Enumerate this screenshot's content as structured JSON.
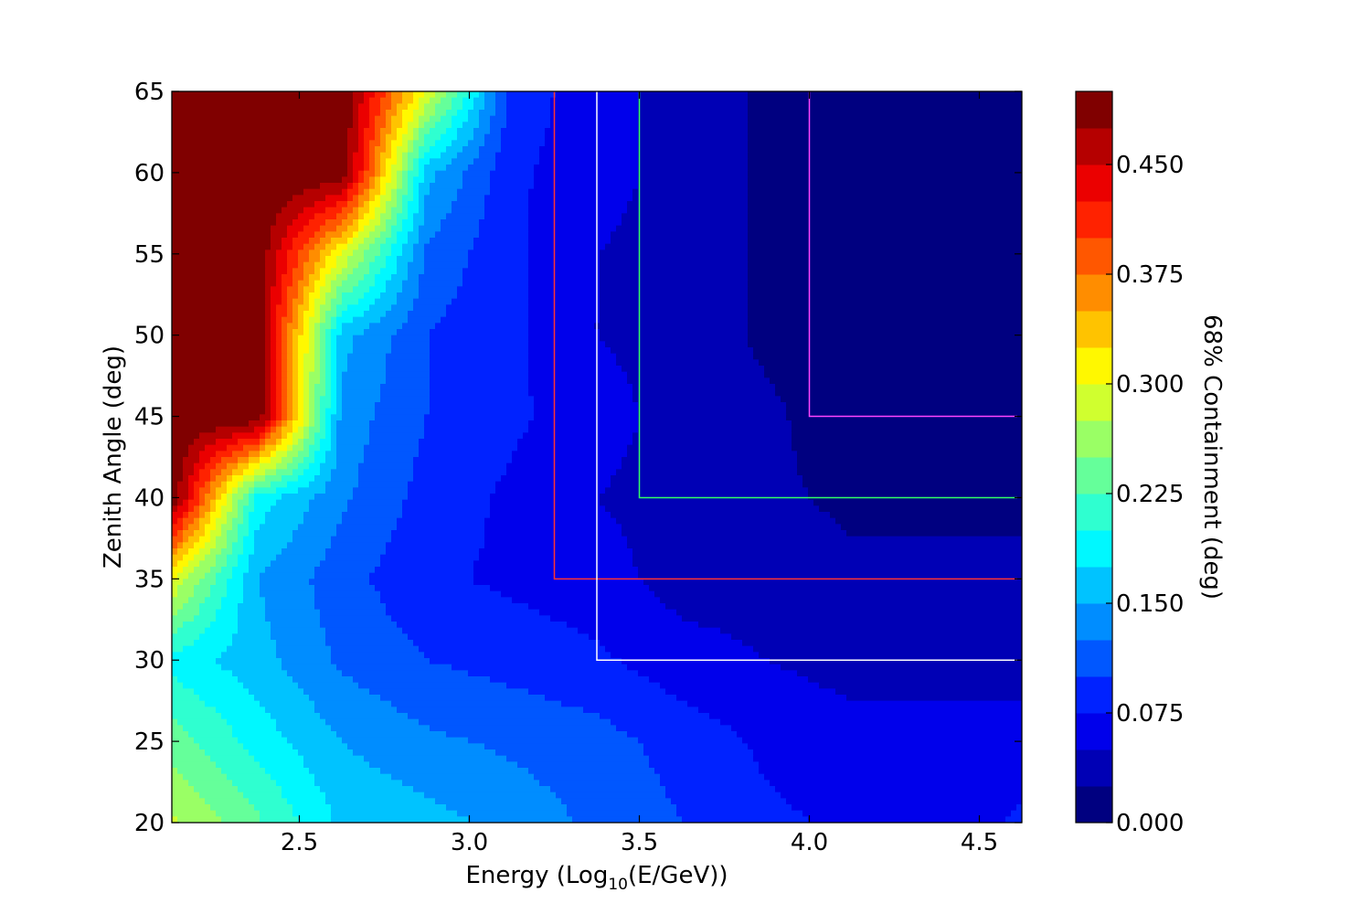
{
  "chart_data": {
    "type": "contour",
    "title": "",
    "xlabel": {
      "prefix": "Energy (Log",
      "sub": "10",
      "suffix": "(E/GeV))"
    },
    "ylabel": "Zenith Angle (deg)",
    "colorbar_label": "68% Containment (deg)",
    "colormap": "jet",
    "xlim": [
      2.125,
      4.625
    ],
    "ylim": [
      20,
      65
    ],
    "x_ticks": [
      2.5,
      3.0,
      3.5,
      4.0,
      4.5
    ],
    "x_tick_labels": [
      "2.5",
      "3.0",
      "3.5",
      "4.0",
      "4.5"
    ],
    "y_ticks": [
      20,
      25,
      30,
      35,
      40,
      45,
      50,
      55,
      60,
      65
    ],
    "y_tick_labels": [
      "20",
      "25",
      "30",
      "35",
      "40",
      "45",
      "50",
      "55",
      "60",
      "65"
    ],
    "levels": [
      0.0,
      0.025,
      0.05,
      0.075,
      0.1,
      0.125,
      0.15,
      0.175,
      0.2,
      0.225,
      0.25,
      0.275,
      0.3,
      0.325,
      0.35,
      0.375,
      0.4,
      0.425,
      0.45,
      0.475,
      0.5
    ],
    "colorbar_ticks": [
      0.0,
      0.075,
      0.15,
      0.225,
      0.3,
      0.375,
      0.45
    ],
    "colorbar_tick_labels": [
      "0.000",
      "0.075",
      "0.150",
      "0.225",
      "0.300",
      "0.375",
      "0.450"
    ],
    "grid_x": [
      2.125,
      2.375,
      2.625,
      2.875,
      3.125,
      3.375,
      3.625,
      3.875,
      4.125,
      4.375,
      4.625
    ],
    "grid_y": [
      20,
      25,
      30,
      35,
      40,
      45,
      50,
      55,
      60,
      65
    ],
    "z": [
      [
        0.28,
        0.23,
        0.17,
        0.16,
        0.14,
        0.12,
        0.1,
        0.08,
        0.07,
        0.06,
        0.08
      ],
      [
        0.24,
        0.19,
        0.15,
        0.13,
        0.12,
        0.11,
        0.09,
        0.07,
        0.06,
        0.06,
        0.06
      ],
      [
        0.19,
        0.16,
        0.12,
        0.1,
        0.09,
        0.08,
        0.06,
        0.05,
        0.04,
        0.04,
        0.04
      ],
      [
        0.3,
        0.15,
        0.11,
        0.08,
        0.07,
        0.06,
        0.04,
        0.04,
        0.03,
        0.03,
        0.03
      ],
      [
        0.5,
        0.19,
        0.13,
        0.09,
        0.07,
        0.05,
        0.04,
        0.03,
        0.02,
        0.02,
        0.02
      ],
      [
        0.5,
        0.5,
        0.14,
        0.1,
        0.08,
        0.06,
        0.04,
        0.03,
        0.01,
        0.01,
        0.01
      ],
      [
        0.5,
        0.5,
        0.16,
        0.1,
        0.08,
        0.05,
        0.04,
        0.02,
        0.01,
        0.01,
        0.01
      ],
      [
        0.5,
        0.5,
        0.3,
        0.12,
        0.08,
        0.05,
        0.04,
        0.02,
        0.01,
        0.01,
        0.01
      ],
      [
        0.5,
        0.5,
        0.5,
        0.16,
        0.08,
        0.06,
        0.04,
        0.02,
        0.01,
        0.01,
        0.01
      ],
      [
        0.5,
        0.5,
        0.5,
        0.3,
        0.09,
        0.06,
        0.04,
        0.02,
        0.01,
        0.01,
        0.01
      ]
    ],
    "overlay_boxes": [
      {
        "x_min": 3.25,
        "y_min": 35,
        "color": "#ff3333"
      },
      {
        "x_min": 3.375,
        "y_min": 30,
        "color": "#ffffff"
      },
      {
        "x_min": 3.5,
        "y_min": 40,
        "color": "#33ff66"
      },
      {
        "x_min": 4.0,
        "y_min": 45,
        "color": "#ff44ff"
      }
    ]
  }
}
